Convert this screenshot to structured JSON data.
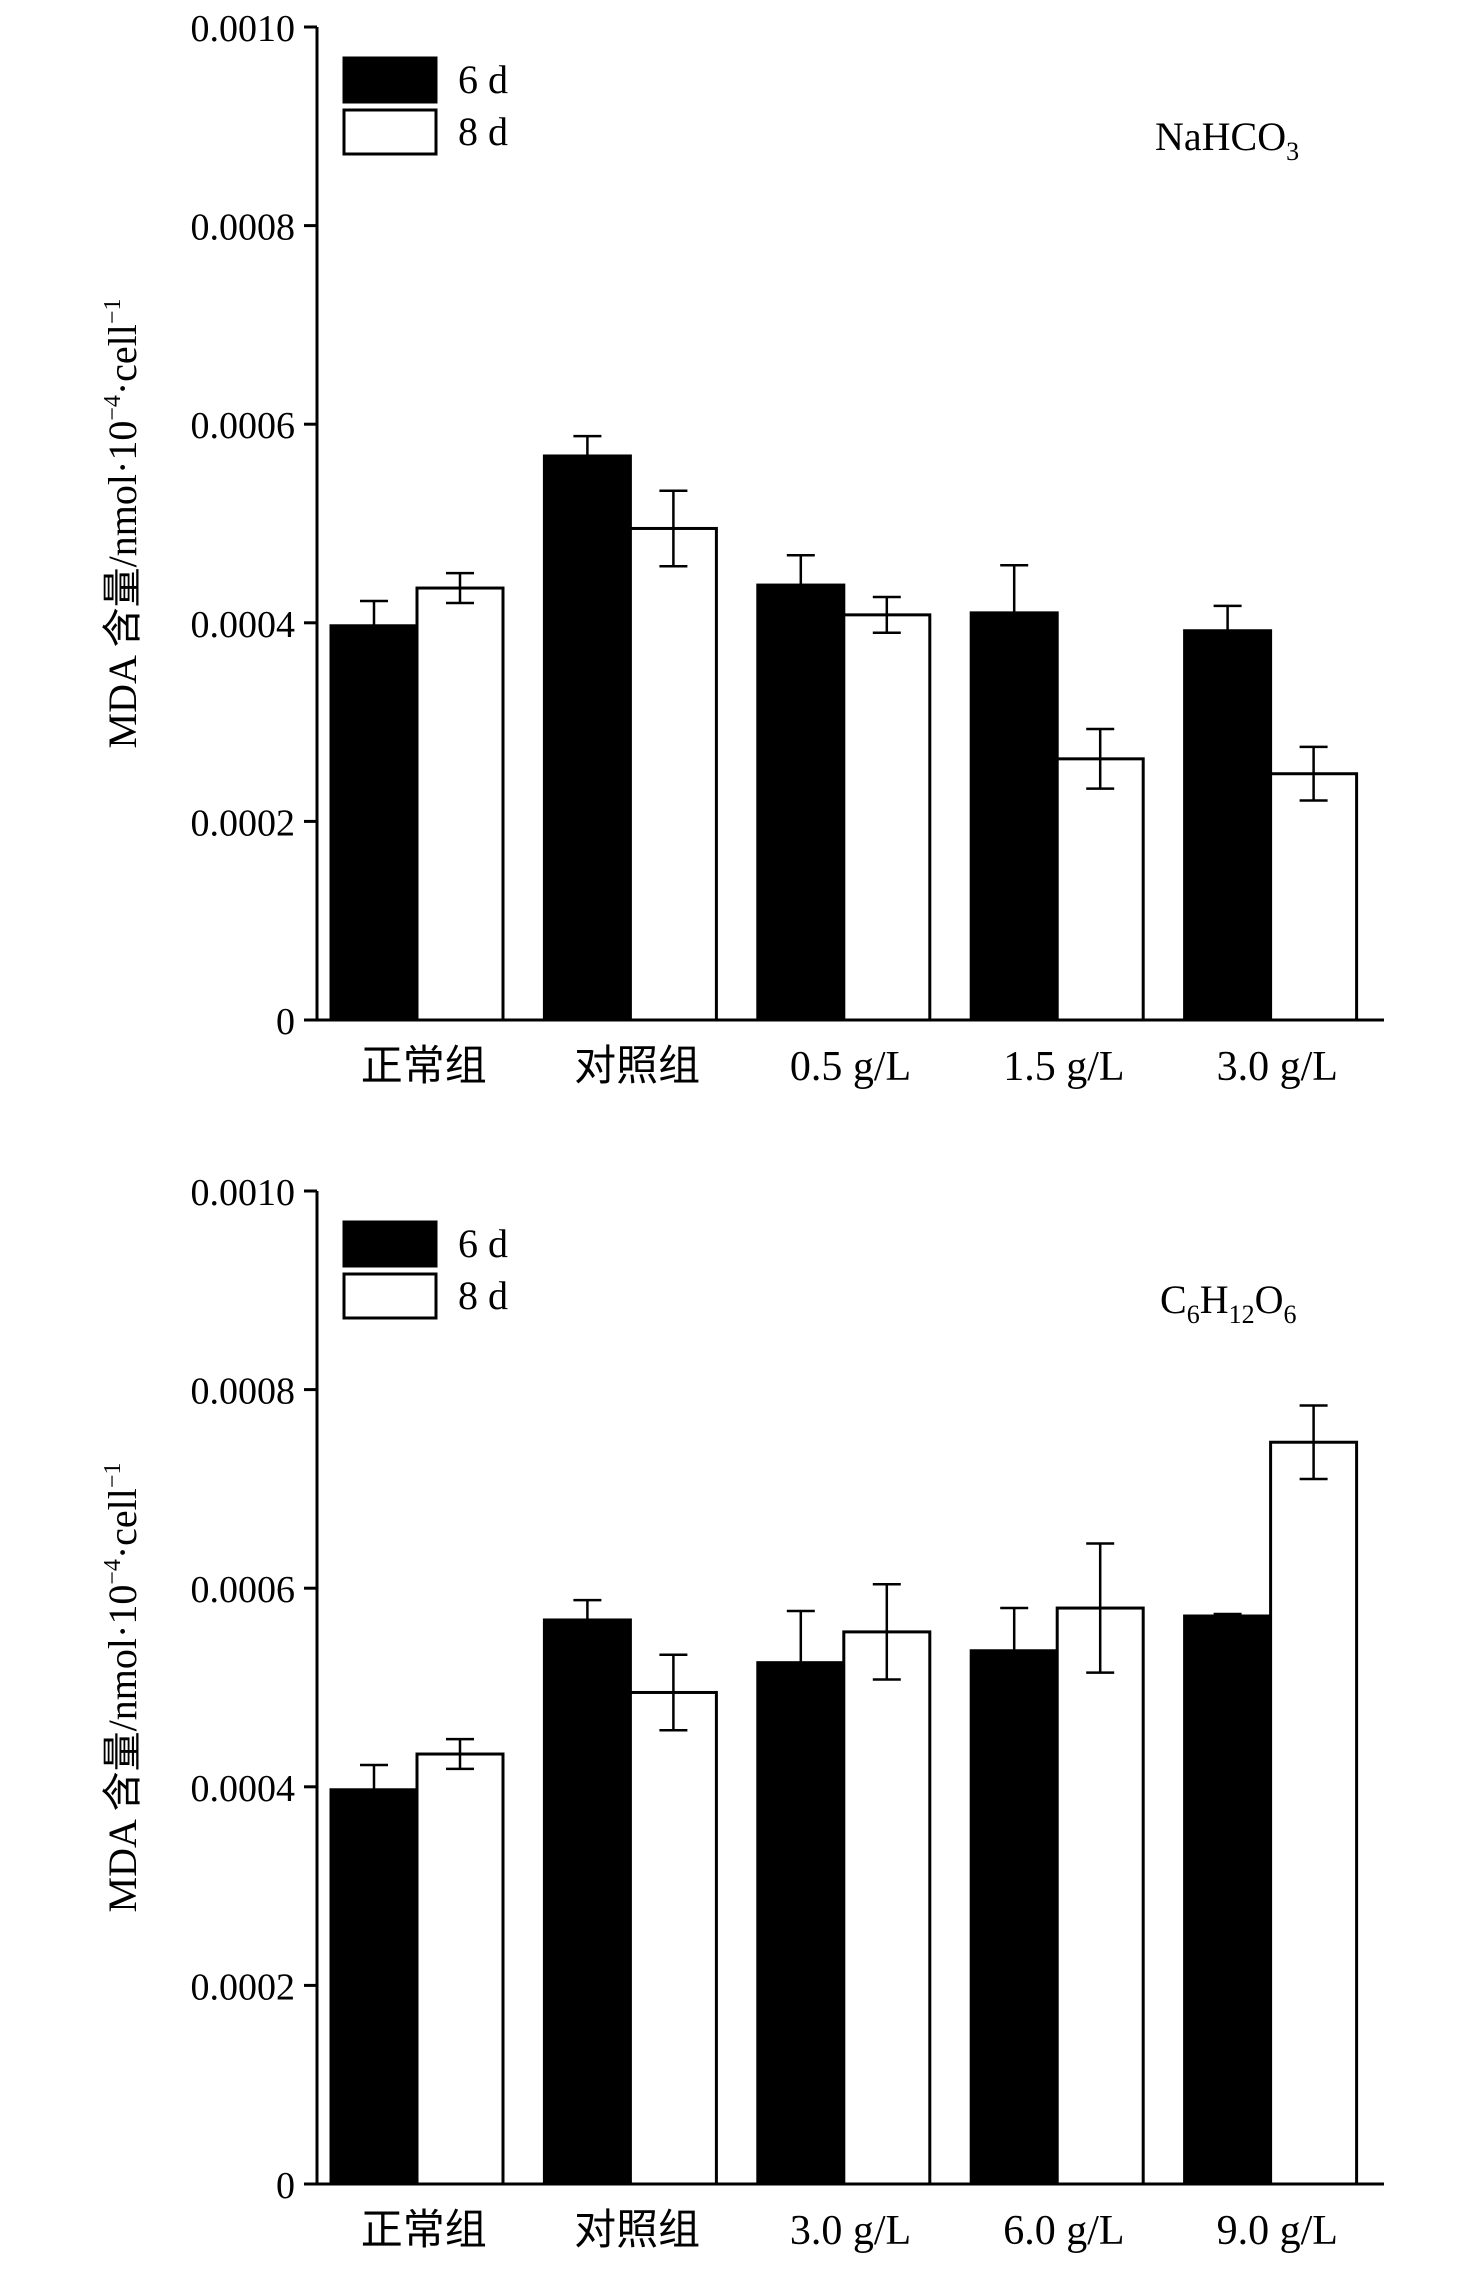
{
  "chart_data": [
    {
      "type": "bar",
      "annotation": {
        "main": "NaHCO",
        "sub": "3"
      },
      "ylabel": {
        "prefix": "MDA 含量/nmol·10",
        "sup1": "−4",
        "mid": "·cell",
        "sup2": "−1"
      },
      "ylim": [
        0,
        0.001
      ],
      "yticks": [
        "0",
        "0.0002",
        "0.0004",
        "0.0006",
        "0.0008",
        "0.0010"
      ],
      "ytick_values": [
        0,
        0.0002,
        0.0004,
        0.0006,
        0.0008,
        0.001
      ],
      "categories": [
        "正常组",
        "对照组",
        "0.5 g/L",
        "1.5 g/L",
        "3.0 g/L"
      ],
      "series": [
        {
          "name": "6 d",
          "color": "#000000",
          "values": [
            0.000397,
            0.000568,
            0.000438,
            0.00041,
            0.000392
          ],
          "errors": [
            2.5e-05,
            2e-05,
            3e-05,
            4.8e-05,
            2.5e-05
          ]
        },
        {
          "name": "8 d",
          "color": "#ffffff",
          "values": [
            0.000435,
            0.000495,
            0.000408,
            0.000263,
            0.000248
          ],
          "errors": [
            1.5e-05,
            3.8e-05,
            1.8e-05,
            3e-05,
            2.7e-05
          ]
        }
      ],
      "legend": "top-left"
    },
    {
      "type": "bar",
      "annotation": {
        "main": "C",
        "sub": "6",
        "main2": "H",
        "sub2": "12",
        "main3": "O",
        "sub3": "6"
      },
      "ylabel": {
        "prefix": "MDA 含量/nmol·10",
        "sup1": "−4",
        "mid": "·cell",
        "sup2": "−1"
      },
      "ylim": [
        0,
        0.001
      ],
      "yticks": [
        "0",
        "0.0002",
        "0.0004",
        "0.0006",
        "0.0008",
        "0.0010"
      ],
      "ytick_values": [
        0,
        0.0002,
        0.0004,
        0.0006,
        0.0008,
        0.001
      ],
      "categories": [
        "正常组",
        "对照组",
        "3.0 g/L",
        "6.0 g/L",
        "9.0 g/L"
      ],
      "series": [
        {
          "name": "6 d",
          "color": "#000000",
          "values": [
            0.000397,
            0.000568,
            0.000525,
            0.000537,
            0.000572
          ],
          "errors": [
            2.5e-05,
            2e-05,
            5.2e-05,
            4.3e-05,
            2e-06
          ]
        },
        {
          "name": "8 d",
          "color": "#ffffff",
          "values": [
            0.000433,
            0.000495,
            0.000556,
            0.00058,
            0.000747
          ],
          "errors": [
            1.5e-05,
            3.8e-05,
            4.8e-05,
            6.5e-05,
            3.7e-05
          ]
        }
      ],
      "legend": "top-left"
    }
  ]
}
